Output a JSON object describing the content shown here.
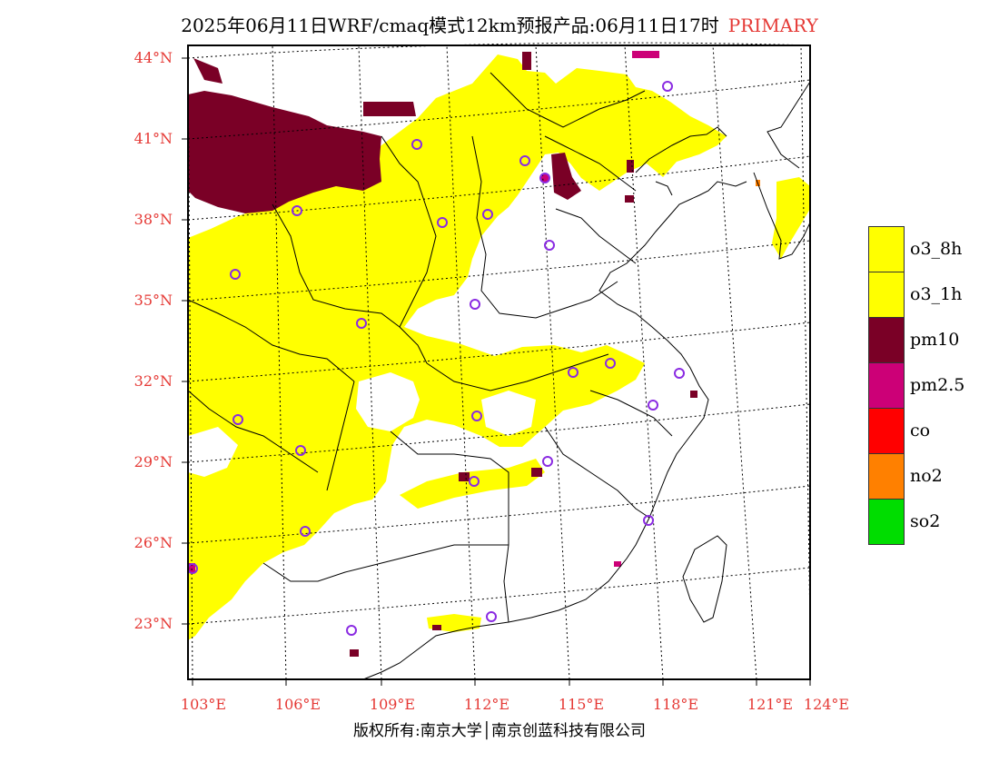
{
  "title": {
    "main": "2025年06月11日WRF/cmaq模式12km预报产品:06月11日17时",
    "tag": "PRIMARY"
  },
  "map": {
    "lat_labels": [
      "44°N",
      "41°N",
      "38°N",
      "35°N",
      "32°N",
      "29°N",
      "26°N",
      "23°N"
    ],
    "lon_labels": [
      "103°E",
      "106°E",
      "109°E",
      "112°E",
      "115°E",
      "118°E",
      "121°E",
      "124°E"
    ],
    "colors": {
      "o3_8h": "#ffff00",
      "o3_1h": "#ffff00",
      "pm10": "#7a0026",
      "pm2.5": "#cc0077",
      "co": "#ff0000",
      "no2": "#ff8000",
      "so2": "#00dd00",
      "station_marker": "#8a2be2",
      "label_red": "#e53935"
    }
  },
  "legend": {
    "items": [
      {
        "label": "o3_8h",
        "color": "#ffff00"
      },
      {
        "label": "o3_1h",
        "color": "#ffff00"
      },
      {
        "label": "pm10",
        "color": "#7a0026"
      },
      {
        "label": "pm2.5",
        "color": "#cc0077"
      },
      {
        "label": "co",
        "color": "#ff0000"
      },
      {
        "label": "no2",
        "color": "#ff8000"
      },
      {
        "label": "so2",
        "color": "#00dd00"
      }
    ]
  },
  "footer": {
    "copyright": "版权所有:南京大学│南京创蓝科技有限公司"
  }
}
